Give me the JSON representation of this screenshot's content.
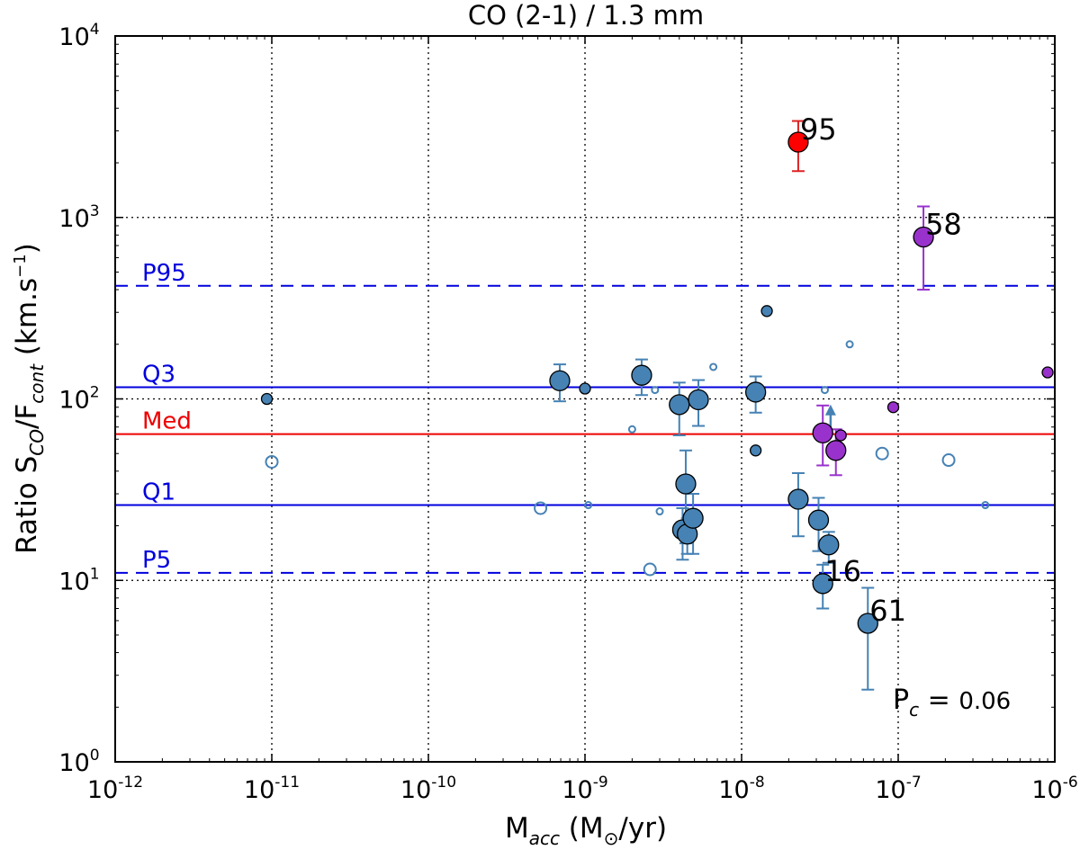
{
  "chart_data": {
    "type": "scatter",
    "title": "CO (2-1) / 1.3 mm",
    "xlabel": {
      "main": "M",
      "sub": "acc",
      "rest": " (M",
      "sun": "⊙",
      "end": "/yr)"
    },
    "ylabel": {
      "main": "Ratio S",
      "sub1": "CO",
      "mid": "/F",
      "sub2": "cont",
      "rest": " (km.s",
      "sup": "−1",
      "end": ")"
    },
    "xscale": "log",
    "yscale": "log",
    "xlim": [
      1e-12,
      1e-06
    ],
    "ylim": [
      1,
      10000
    ],
    "x_ticks": [
      {
        "base": "10",
        "exp": "-12"
      },
      {
        "base": "10",
        "exp": "-11"
      },
      {
        "base": "10",
        "exp": "-10"
      },
      {
        "base": "10",
        "exp": "-9"
      },
      {
        "base": "10",
        "exp": "-8"
      },
      {
        "base": "10",
        "exp": "-7"
      },
      {
        "base": "10",
        "exp": "-6"
      }
    ],
    "y_ticks": [
      {
        "base": "10",
        "exp": "0"
      },
      {
        "base": "10",
        "exp": "1"
      },
      {
        "base": "10",
        "exp": "2"
      },
      {
        "base": "10",
        "exp": "3"
      },
      {
        "base": "10",
        "exp": "4"
      }
    ],
    "grid": true,
    "colors": {
      "blue": "#4682b4",
      "red": "#ff0000",
      "purple": "#9932cc",
      "lineblue": "#0000dd",
      "linered": "#ee0000",
      "errpurple": "#9932cc",
      "errred": "#dd2222"
    },
    "reference_lines": [
      {
        "label": "P95",
        "y": 420,
        "style": "dashed",
        "color": "#0000dd"
      },
      {
        "label": "Q3",
        "y": 116,
        "style": "solid",
        "color": "#0000dd"
      },
      {
        "label": "Med",
        "y": 64,
        "style": "solid",
        "color": "#ee0000"
      },
      {
        "label": "Q1",
        "y": 26,
        "style": "solid",
        "color": "#0000dd"
      },
      {
        "label": "P5",
        "y": 11,
        "style": "dashed",
        "color": "#0000dd"
      }
    ],
    "points": [
      {
        "x": 2.3e-08,
        "y": 2600,
        "size": "large",
        "color": "red",
        "filled": true,
        "err": [
          1800,
          3400
        ],
        "label": "95"
      },
      {
        "x": 1.45e-07,
        "y": 780,
        "size": "large",
        "color": "purple",
        "filled": true,
        "err": [
          400,
          1150
        ],
        "label": "58"
      },
      {
        "x": 3.3e-08,
        "y": 65,
        "size": "large",
        "color": "purple",
        "filled": true,
        "err": [
          43,
          92
        ]
      },
      {
        "x": 4e-08,
        "y": 52,
        "size": "large",
        "color": "purple",
        "filled": true,
        "err": [
          38,
          68
        ]
      },
      {
        "x": 4.3e-08,
        "y": 63,
        "size": "small",
        "color": "purple",
        "filled": true
      },
      {
        "x": 9.3e-08,
        "y": 90,
        "size": "small",
        "color": "purple",
        "filled": true
      },
      {
        "x": 9e-07,
        "y": 140,
        "size": "small",
        "color": "purple",
        "filled": true
      },
      {
        "x": 9.3e-12,
        "y": 100,
        "size": "small",
        "color": "blue",
        "filled": true
      },
      {
        "x": 1e-11,
        "y": 45,
        "size": "medium",
        "color": "blue",
        "filled": false
      },
      {
        "x": 5.2e-10,
        "y": 25,
        "size": "medium",
        "color": "blue",
        "filled": false
      },
      {
        "x": 6.9e-10,
        "y": 126,
        "size": "large",
        "color": "blue",
        "filled": true,
        "err": [
          97,
          155
        ]
      },
      {
        "x": 1e-09,
        "y": 114,
        "size": "small",
        "color": "blue",
        "filled": true
      },
      {
        "x": 1.05e-09,
        "y": 26,
        "size": "tiny",
        "color": "blue",
        "filled": false
      },
      {
        "x": 2e-09,
        "y": 68,
        "size": "tiny",
        "color": "blue",
        "filled": false
      },
      {
        "x": 2.3e-09,
        "y": 135,
        "size": "large",
        "color": "blue",
        "filled": true,
        "err": [
          105,
          165
        ]
      },
      {
        "x": 2.6e-09,
        "y": 11.5,
        "size": "medium",
        "color": "blue",
        "filled": false
      },
      {
        "x": 2.8e-09,
        "y": 112,
        "size": "tiny",
        "color": "blue",
        "filled": false
      },
      {
        "x": 3e-09,
        "y": 24,
        "size": "tiny",
        "color": "blue",
        "filled": false
      },
      {
        "x": 4e-09,
        "y": 93,
        "size": "large",
        "color": "blue",
        "filled": true,
        "err": [
          63,
          123
        ]
      },
      {
        "x": 4.4e-09,
        "y": 34,
        "size": "large",
        "color": "blue",
        "filled": true,
        "err": [
          16,
          52
        ]
      },
      {
        "x": 4.2e-09,
        "y": 19,
        "size": "large",
        "color": "blue",
        "filled": true,
        "err": [
          13,
          25
        ]
      },
      {
        "x": 4.5e-09,
        "y": 18,
        "size": "large",
        "color": "blue",
        "filled": true,
        "err": [
          14,
          22
        ]
      },
      {
        "x": 4.9e-09,
        "y": 22,
        "size": "large",
        "color": "blue",
        "filled": true,
        "err": [
          14,
          30
        ]
      },
      {
        "x": 5.3e-09,
        "y": 99,
        "size": "large",
        "color": "blue",
        "filled": true,
        "err": [
          71,
          127
        ]
      },
      {
        "x": 6.6e-09,
        "y": 150,
        "size": "tiny",
        "color": "blue",
        "filled": false
      },
      {
        "x": 1.23e-08,
        "y": 109,
        "size": "large",
        "color": "blue",
        "filled": true,
        "err": [
          84,
          133
        ]
      },
      {
        "x": 1.23e-08,
        "y": 52,
        "size": "small",
        "color": "blue",
        "filled": true
      },
      {
        "x": 1.45e-08,
        "y": 305,
        "size": "small",
        "color": "blue",
        "filled": true
      },
      {
        "x": 2.3e-08,
        "y": 28,
        "size": "large",
        "color": "blue",
        "filled": true,
        "err": [
          17.5,
          39
        ]
      },
      {
        "x": 3.1e-08,
        "y": 21.5,
        "size": "large",
        "color": "blue",
        "filled": true,
        "err": [
          14.5,
          28.5
        ]
      },
      {
        "x": 3.6e-08,
        "y": 15.7,
        "size": "large",
        "color": "blue",
        "filled": true,
        "err": [
          12.5,
          18.5
        ]
      },
      {
        "x": 3.3e-08,
        "y": 9.6,
        "size": "large",
        "color": "blue",
        "filled": true,
        "err": [
          7,
          12.2
        ],
        "label": "16"
      },
      {
        "x": 3.4e-08,
        "y": 112,
        "size": "tiny",
        "color": "blue",
        "filled": false
      },
      {
        "x": 4.9e-08,
        "y": 200,
        "size": "tiny",
        "color": "blue",
        "filled": false
      },
      {
        "x": 6.4e-08,
        "y": 5.8,
        "size": "large",
        "color": "blue",
        "filled": true,
        "err": [
          2.5,
          9.1
        ],
        "label": "61"
      },
      {
        "x": 7.9e-08,
        "y": 50,
        "size": "medium",
        "color": "blue",
        "filled": false
      },
      {
        "x": 2.1e-07,
        "y": 46,
        "size": "medium",
        "color": "blue",
        "filled": false
      },
      {
        "x": 3.6e-07,
        "y": 26,
        "size": "tiny",
        "color": "blue",
        "filled": false
      }
    ],
    "lower_limit_arrow": {
      "x": 3.7e-08,
      "y_from": 63,
      "y_to": 90,
      "color": "blue"
    },
    "statistic": {
      "label_main": "P",
      "label_sub": "c",
      "equals": " = ",
      "value": "0.06"
    }
  }
}
